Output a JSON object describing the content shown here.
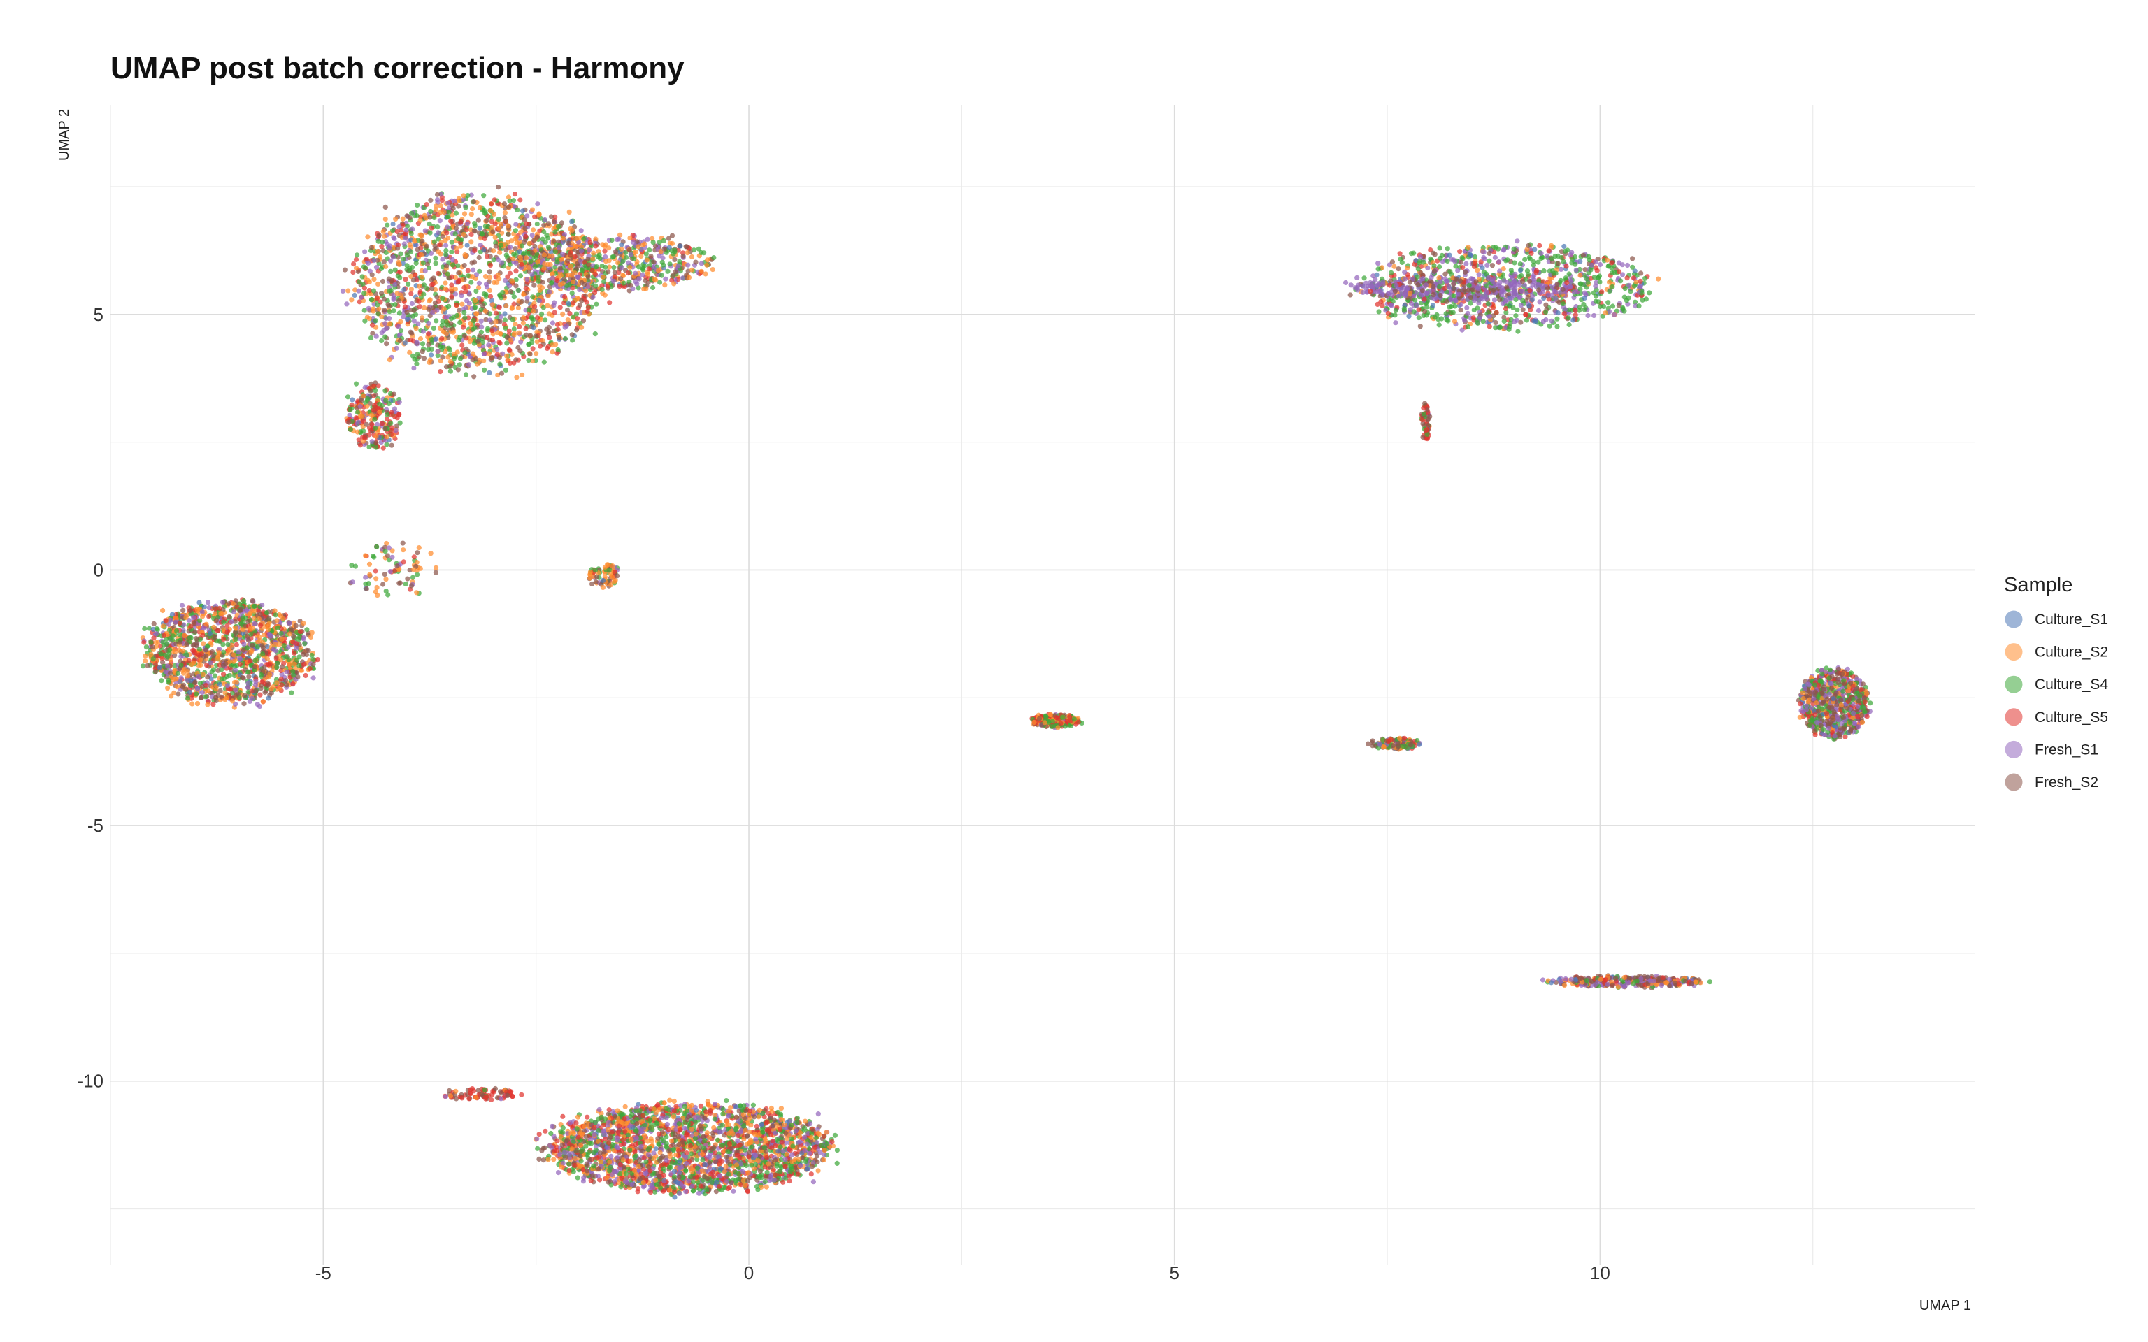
{
  "chart_data": {
    "type": "scatter",
    "title": "UMAP post batch correction - Harmony",
    "xlabel": "UMAP 1",
    "ylabel": "UMAP 2",
    "xlim": [
      -7.5,
      14.4
    ],
    "ylim": [
      -13.6,
      9.1
    ],
    "x_ticks": [
      -5,
      0,
      5,
      10
    ],
    "y_ticks": [
      5,
      0,
      -5,
      -10
    ],
    "x_tick_labels": [
      "-5",
      "0",
      "5",
      "10"
    ],
    "y_tick_labels": [
      "5",
      "0",
      "-5",
      "-10"
    ],
    "grid": true,
    "legend_position": "right",
    "legend_title": "Sample",
    "series": [
      {
        "name": "Culture_S1",
        "color": "#4e79b6"
      },
      {
        "name": "Culture_S2",
        "color": "#ff8c2e"
      },
      {
        "name": "Culture_S4",
        "color": "#3ea83a"
      },
      {
        "name": "Culture_S5",
        "color": "#e0342f"
      },
      {
        "name": "Fresh_S1",
        "color": "#9467bd"
      },
      {
        "name": "Fresh_S2",
        "color": "#8c564b"
      }
    ],
    "clusters": [
      {
        "label": "upper-left large cluster",
        "cx": -3.2,
        "cy": 5.6,
        "rx": 1.6,
        "ry": 1.9,
        "n": 1700,
        "weights": [
          0.03,
          0.25,
          0.27,
          0.13,
          0.14,
          0.18
        ]
      },
      {
        "label": "upper-left cluster tail",
        "cx": -1.6,
        "cy": 6.0,
        "rx": 1.3,
        "ry": 0.6,
        "n": 520,
        "weights": [
          0.02,
          0.28,
          0.27,
          0.08,
          0.15,
          0.2
        ]
      },
      {
        "label": "upper-left lower lobe",
        "cx": -4.4,
        "cy": 3.0,
        "rx": 0.35,
        "ry": 0.7,
        "n": 240,
        "weights": [
          0.02,
          0.15,
          0.25,
          0.38,
          0.08,
          0.12
        ]
      },
      {
        "label": "upper-right ring cluster",
        "cx": 8.85,
        "cy": 5.55,
        "rx": 1.9,
        "ry": 0.9,
        "n": 900,
        "weights": [
          0.05,
          0.07,
          0.4,
          0.13,
          0.25,
          0.1
        ]
      },
      {
        "label": "upper-right dense band",
        "cx": 8.4,
        "cy": 5.5,
        "rx": 1.5,
        "ry": 0.25,
        "n": 380,
        "weights": [
          0.04,
          0.03,
          0.06,
          0.07,
          0.6,
          0.2
        ]
      },
      {
        "label": "upper-right stalk",
        "cx": 7.95,
        "cy": 2.9,
        "rx": 0.06,
        "ry": 0.4,
        "n": 55,
        "weights": [
          0.0,
          0.05,
          0.1,
          0.35,
          0.1,
          0.4
        ]
      },
      {
        "label": "left mid cluster",
        "cx": -6.1,
        "cy": -1.6,
        "rx": 1.1,
        "ry": 1.1,
        "n": 1300,
        "weights": [
          0.02,
          0.26,
          0.26,
          0.14,
          0.12,
          0.2
        ]
      },
      {
        "label": "bridge trail",
        "cx": -4.2,
        "cy": 0.0,
        "rx": 0.6,
        "ry": 0.6,
        "n": 80,
        "weights": [
          0.02,
          0.25,
          0.25,
          0.1,
          0.13,
          0.25
        ]
      },
      {
        "label": "small blob near center",
        "cx": -1.7,
        "cy": -0.1,
        "rx": 0.2,
        "ry": 0.25,
        "n": 70,
        "weights": [
          0.02,
          0.4,
          0.15,
          0.1,
          0.08,
          0.25
        ]
      },
      {
        "label": "mid small cluster",
        "cx": 3.6,
        "cy": -2.95,
        "rx": 0.32,
        "ry": 0.14,
        "n": 190,
        "weights": [
          0.02,
          0.25,
          0.3,
          0.28,
          0.05,
          0.1
        ]
      },
      {
        "label": "mid-right small cluster",
        "cx": 7.6,
        "cy": -3.4,
        "rx": 0.32,
        "ry": 0.12,
        "n": 130,
        "weights": [
          0.02,
          0.2,
          0.2,
          0.12,
          0.1,
          0.36
        ]
      },
      {
        "label": "far-right cluster",
        "cx": 12.75,
        "cy": -2.6,
        "rx": 0.45,
        "ry": 0.75,
        "n": 650,
        "weights": [
          0.02,
          0.1,
          0.25,
          0.13,
          0.2,
          0.3
        ]
      },
      {
        "label": "lower-right elongated cluster",
        "cx": 10.3,
        "cy": -8.05,
        "rx": 1.0,
        "ry": 0.12,
        "n": 300,
        "weights": [
          0.04,
          0.18,
          0.12,
          0.12,
          0.22,
          0.32
        ]
      },
      {
        "label": "bottom large cluster",
        "cx": -0.7,
        "cy": -11.3,
        "rx": 1.85,
        "ry": 0.95,
        "n": 2300,
        "weights": [
          0.02,
          0.22,
          0.23,
          0.18,
          0.2,
          0.15
        ]
      },
      {
        "label": "bottom-left streak",
        "cx": -3.15,
        "cy": -10.25,
        "rx": 0.55,
        "ry": 0.12,
        "n": 80,
        "weights": [
          0.0,
          0.1,
          0.05,
          0.4,
          0.05,
          0.4
        ]
      }
    ]
  }
}
